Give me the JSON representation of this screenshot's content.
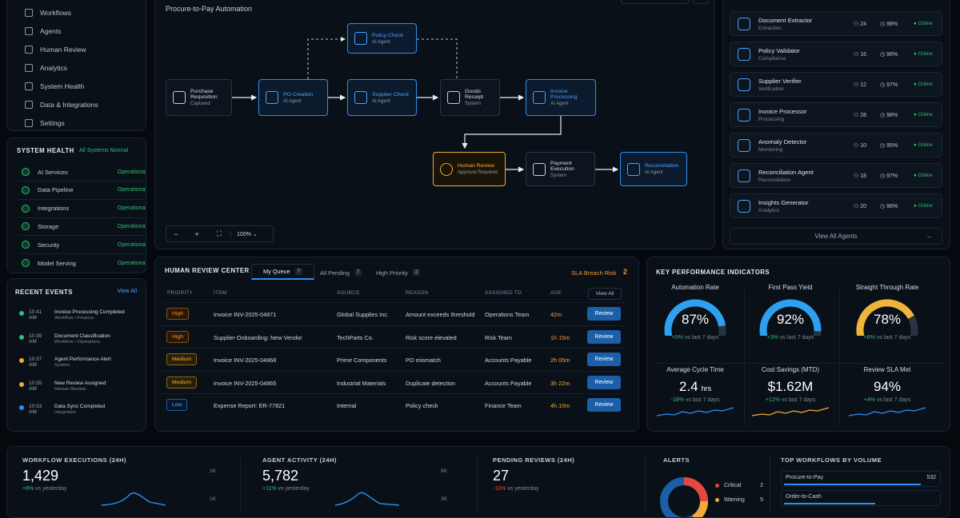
{
  "sidebar": {
    "nav": [
      {
        "label": "Workflows",
        "icon": "workflow-icon"
      },
      {
        "label": "Agents",
        "icon": "agents-icon"
      },
      {
        "label": "Human Review",
        "icon": "review-icon"
      },
      {
        "label": "Analytics",
        "icon": "analytics-icon"
      },
      {
        "label": "System Health",
        "icon": "shield-icon"
      },
      {
        "label": "Data & Integrations",
        "icon": "database-icon"
      },
      {
        "label": "Settings",
        "icon": "gear-icon"
      }
    ]
  },
  "system_health": {
    "title": "SYSTEM HEALTH",
    "summary": "All Systems Normal",
    "items": [
      {
        "label": "AI Services",
        "status": "Operational"
      },
      {
        "label": "Data Pipeline",
        "status": "Operational"
      },
      {
        "label": "Integrations",
        "status": "Operational"
      },
      {
        "label": "Storage",
        "status": "Operational"
      },
      {
        "label": "Security",
        "status": "Operational"
      },
      {
        "label": "Model Serving",
        "status": "Operational"
      }
    ]
  },
  "events": {
    "title": "RECENT EVENTS",
    "view_all": "View All",
    "items": [
      {
        "time": "10:41 AM",
        "title": "Invoice Processing Completed",
        "sub": "Workflow • Finance",
        "color": "#2fbf71"
      },
      {
        "time": "10:39 AM",
        "title": "Document Classification",
        "sub": "Workflow • Operations",
        "color": "#2fbf71"
      },
      {
        "time": "10:37 AM",
        "title": "Agent Performance Alert",
        "sub": "System",
        "color": "#f0a93a"
      },
      {
        "time": "10:35 AM",
        "title": "New Review Assigned",
        "sub": "Human Review",
        "color": "#f0a93a"
      },
      {
        "time": "10:33 AM",
        "title": "Data Sync Completed",
        "sub": "Integration",
        "color": "#2f8ff0"
      }
    ]
  },
  "workflow": {
    "title": "Procure-to-Pay Automation",
    "zoom": "100%",
    "nodes": {
      "purchase": {
        "label": "Purchase Requisition",
        "sub": "Captured"
      },
      "po": {
        "label": "PO Creation",
        "sub": "AI Agent"
      },
      "policy": {
        "label": "Policy Check",
        "sub": "AI Agent"
      },
      "supplier": {
        "label": "Supplier Check",
        "sub": "AI Agent"
      },
      "goods": {
        "label": "Goods Receipt",
        "sub": "System"
      },
      "invoice": {
        "label": "Invoice Processing",
        "sub": "AI Agent"
      },
      "human": {
        "label": "Human Review",
        "sub": "Approval Required"
      },
      "payment": {
        "label": "Payment Execution",
        "sub": "System"
      },
      "recon": {
        "label": "Reconciliation",
        "sub": "AI Agent"
      }
    }
  },
  "agents": {
    "items": [
      {
        "name": "Document Extractor",
        "cat": "Extraction",
        "users": "24",
        "rate": "98%",
        "status": "Online"
      },
      {
        "name": "Policy Validator",
        "cat": "Compliance",
        "users": "16",
        "rate": "96%",
        "status": "Online"
      },
      {
        "name": "Supplier Verifier",
        "cat": "Verification",
        "users": "12",
        "rate": "97%",
        "status": "Online"
      },
      {
        "name": "Invoice Processor",
        "cat": "Processing",
        "users": "28",
        "rate": "98%",
        "status": "Online"
      },
      {
        "name": "Anomaly Detector",
        "cat": "Monitoring",
        "users": "10",
        "rate": "95%",
        "status": "Online"
      },
      {
        "name": "Reconciliation Agent",
        "cat": "Reconciliation",
        "users": "18",
        "rate": "97%",
        "status": "Online"
      },
      {
        "name": "Insights Generator",
        "cat": "Analytics",
        "users": "20",
        "rate": "96%",
        "status": "Online"
      }
    ],
    "view_all": "View All Agents"
  },
  "review": {
    "title": "HUMAN REVIEW CENTER",
    "tabs": [
      {
        "label": "My Queue",
        "count": "7"
      },
      {
        "label": "All Pending",
        "count": "7"
      },
      {
        "label": "High Priority",
        "count": "2"
      }
    ],
    "sla_label": "SLA Breach Risk",
    "sla_count": "2",
    "columns": [
      "PRIORITY",
      "ITEM",
      "SOURCE",
      "REASON",
      "ASSIGNED TO",
      "AGE"
    ],
    "view_all": "View All",
    "action": "Review",
    "rows": [
      {
        "priority": "High",
        "level": "high",
        "item": "Invoice INV-2025-04871",
        "source": "Global Supplies Inc.",
        "reason": "Amount exceeds threshold",
        "assigned": "Operations Team",
        "age": "42m"
      },
      {
        "priority": "High",
        "level": "high",
        "item": "Supplier Onboarding: New Vendor",
        "source": "TechParts Co.",
        "reason": "Risk score elevated",
        "assigned": "Risk Team",
        "age": "1h 15m"
      },
      {
        "priority": "Medium",
        "level": "medium",
        "item": "Invoice INV-2025-04868",
        "source": "Prime Components",
        "reason": "PO mismatch",
        "assigned": "Accounts Payable",
        "age": "2h 05m"
      },
      {
        "priority": "Medium",
        "level": "medium",
        "item": "Invoice INV-2025-04865",
        "source": "Industrial Materials",
        "reason": "Duplicate detection",
        "assigned": "Accounts Payable",
        "age": "3h 22m"
      },
      {
        "priority": "Low",
        "level": "low",
        "item": "Expense Report: ER-77821",
        "source": "Internal",
        "reason": "Policy check",
        "assigned": "Finance Team",
        "age": "4h 10m"
      }
    ]
  },
  "kpi": {
    "title": "KEY PERFORMANCE INDICATORS",
    "gauges": [
      {
        "label": "Automation Rate",
        "value": "87%",
        "pct": 0.87,
        "delta": "+5%",
        "note": "vs last 7 days",
        "color": "#2f9ff0"
      },
      {
        "label": "First Pass Yield",
        "value": "92%",
        "pct": 0.92,
        "delta": "+3%",
        "note": "vs last 7 days",
        "color": "#2f9ff0"
      },
      {
        "label": "Straight Through Rate",
        "value": "78%",
        "pct": 0.78,
        "delta": "+6%",
        "note": "vs last 7 days",
        "color": "#f0b43a"
      }
    ],
    "stats": [
      {
        "label": "Average Cycle Time",
        "value": "2.4",
        "unit": "hrs",
        "delta": "-18%",
        "note": "vs last 7 days",
        "color": "#2f8ff0"
      },
      {
        "label": "Cost Savings (MTD)",
        "value": "$1.62M",
        "unit": "",
        "delta": "+12%",
        "note": "vs last 7 days",
        "color": "#f0a93a"
      },
      {
        "label": "Review SLA Met",
        "value": "94%",
        "unit": "",
        "delta": "+4%",
        "note": "vs last 7 days",
        "color": "#2f8ff0"
      }
    ]
  },
  "bottom": {
    "executions": {
      "title": "WORKFLOW EXECUTIONS (24H)",
      "value": "1,429",
      "delta": "+8%",
      "note": "vs yesterday",
      "ticks": [
        "2K",
        "1K"
      ]
    },
    "activity": {
      "title": "AGENT ACTIVITY (24H)",
      "value": "5,782",
      "delta": "+11%",
      "note": "vs yesterday",
      "ticks": [
        "6K",
        "3K"
      ]
    },
    "pending": {
      "title": "PENDING REVIEWS (24H)",
      "value": "27",
      "delta": "-10%",
      "note": "vs yesterday"
    },
    "alerts": {
      "title": "ALERTS",
      "items": [
        {
          "label": "Critical",
          "count": "2",
          "color": "#e5483f"
        },
        {
          "label": "Warning",
          "count": "5",
          "color": "#f0a93a"
        }
      ]
    },
    "top": {
      "title": "TOP WORKFLOWS BY VOLUME",
      "items": [
        {
          "label": "Procure-to-Pay",
          "value": "532",
          "pct": 0.9
        },
        {
          "label": "Order-to-Cash",
          "value": "",
          "pct": 0.6
        }
      ]
    }
  }
}
